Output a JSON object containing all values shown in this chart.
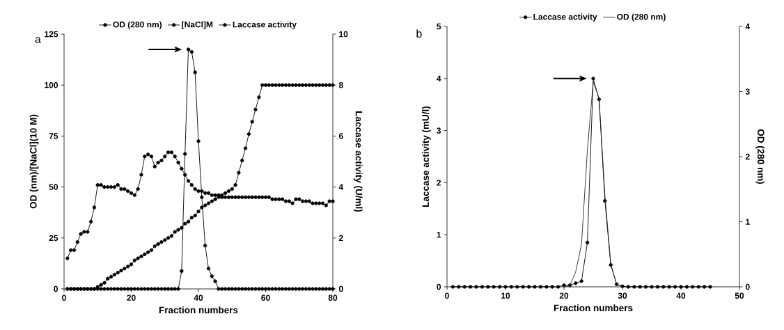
{
  "chart_data": [
    {
      "type": "line",
      "xlabel": "Fraction numbers",
      "ylabel": "OD (nm)/[NaCl](10 M)",
      "y2label": "Laccase activity (U/ml)",
      "annotations": [
        "a"
      ],
      "x": [
        1,
        2,
        3,
        4,
        5,
        6,
        7,
        8,
        9,
        10,
        11,
        12,
        13,
        14,
        15,
        16,
        17,
        18,
        19,
        20,
        21,
        22,
        23,
        24,
        25,
        26,
        27,
        28,
        29,
        30,
        31,
        32,
        33,
        34,
        35,
        36,
        37,
        38,
        39,
        40,
        41,
        42,
        43,
        44,
        45,
        46,
        47,
        48,
        49,
        50,
        51,
        52,
        53,
        54,
        55,
        56,
        57,
        58,
        59,
        60,
        61,
        62,
        63,
        64,
        65,
        66,
        67,
        68,
        69,
        70,
        71,
        72,
        73,
        74,
        75,
        76,
        77,
        78,
        79,
        80
      ],
      "xlim": [
        0,
        80
      ],
      "xticks": [
        0,
        20,
        40,
        60,
        80
      ],
      "ylim": [
        0,
        125
      ],
      "yticks": [
        0,
        25,
        50,
        75,
        100,
        125
      ],
      "y2lim": [
        0,
        10
      ],
      "y2ticks": [
        0,
        2,
        4,
        6,
        8,
        10
      ],
      "legend": "top",
      "line_style": "solid",
      "series": [
        {
          "name": "OD (280 nm)",
          "color": "#000000",
          "marker": "circle",
          "values": [
            15,
            19,
            19,
            23,
            27,
            28,
            28,
            33,
            40,
            51,
            51,
            50,
            50,
            50,
            50,
            51,
            49,
            49,
            48,
            47,
            46,
            49,
            56,
            65,
            66,
            65,
            60,
            62,
            63,
            65,
            67,
            67,
            65,
            62,
            59,
            56,
            53,
            51,
            49,
            48,
            48,
            47,
            47,
            46,
            46,
            46,
            45,
            45,
            45,
            45,
            45,
            45,
            45,
            45,
            45,
            45,
            45,
            45,
            45,
            45,
            45,
            44,
            44,
            44,
            44,
            43,
            43,
            42,
            44,
            44,
            43,
            43,
            43,
            42,
            42,
            42,
            42,
            41,
            43,
            43
          ]
        },
        {
          "name": "[NaCl]M",
          "color": "#000000",
          "marker": "circle",
          "values": [
            0,
            0,
            0,
            0,
            0,
            0,
            0,
            0,
            0,
            1,
            2,
            3,
            5,
            6,
            7,
            8,
            9,
            10,
            11,
            12,
            14,
            15,
            16,
            17,
            18,
            19,
            21,
            22,
            23,
            24,
            25,
            26,
            28,
            29,
            30,
            32,
            33,
            35,
            36,
            38,
            40,
            41,
            42,
            43,
            44,
            45,
            46,
            47,
            48,
            49,
            51,
            57,
            63,
            69,
            76,
            82,
            88,
            94,
            100,
            100,
            100,
            100,
            100,
            100,
            100,
            100,
            100,
            100,
            100,
            100,
            100,
            100,
            100,
            100,
            100,
            100,
            100,
            100,
            100,
            100
          ]
        },
        {
          "name": "Laccase activity",
          "color": "#000000",
          "marker": "circle",
          "axis": "y2",
          "values": [
            0,
            0,
            0,
            0,
            0,
            0,
            0,
            0,
            0,
            0,
            0,
            0,
            0,
            0,
            0,
            0,
            0,
            0,
            0,
            0,
            0,
            0,
            0,
            0,
            0,
            0,
            0,
            0,
            0,
            0,
            0,
            0,
            0,
            0,
            0.7,
            5.3,
            9.4,
            9.3,
            8.5,
            5.8,
            3.6,
            1.7,
            0.8,
            0.5,
            0.3,
            0,
            0,
            0,
            0,
            0,
            0,
            0,
            0,
            0,
            0,
            0,
            0,
            0,
            0,
            0,
            0,
            0,
            0,
            0,
            0,
            0,
            0,
            0,
            0,
            0,
            0,
            0,
            0,
            0,
            0,
            0,
            0,
            0,
            0,
            0
          ]
        }
      ]
    },
    {
      "type": "line",
      "xlabel": "Fraction numbers",
      "ylabel": "Laccase activity (mU/l)",
      "y2label": "OD (280 nm)",
      "annotations": [
        "b"
      ],
      "x": [
        1,
        2,
        3,
        4,
        5,
        6,
        7,
        8,
        9,
        10,
        11,
        12,
        13,
        14,
        15,
        16,
        17,
        18,
        19,
        20,
        21,
        22,
        23,
        24,
        25,
        26,
        27,
        28,
        29,
        30,
        31,
        32,
        33,
        34,
        35,
        36,
        37,
        38,
        39,
        40,
        41,
        42,
        43,
        44,
        45
      ],
      "xlim": [
        0,
        50
      ],
      "xticks": [
        0,
        10,
        20,
        30,
        40,
        50
      ],
      "ylim": [
        0,
        5
      ],
      "yticks": [
        0,
        1,
        2,
        3,
        4,
        5
      ],
      "y2lim": [
        0,
        4
      ],
      "y2ticks": [
        0,
        1,
        2,
        3,
        4
      ],
      "legend": "top",
      "line_style": "solid",
      "series": [
        {
          "name": "Laccase activity",
          "color": "#000000",
          "marker": "circle",
          "values": [
            0,
            0,
            0,
            0,
            0,
            0,
            0,
            0,
            0,
            0,
            0,
            0,
            0,
            0,
            0,
            0,
            0,
            0,
            0,
            0.03,
            0.03,
            0.07,
            0.11,
            0.85,
            4.0,
            3.6,
            1.65,
            0.42,
            0.05,
            0.01,
            0,
            0,
            0,
            0,
            0,
            0,
            0,
            0,
            0,
            0,
            0,
            0,
            0,
            0,
            0
          ]
        },
        {
          "name": "OD (280 nm)",
          "color": "#262626",
          "marker": "none",
          "axis": "y2",
          "x": [
            20,
            21,
            22,
            23,
            24,
            25,
            26,
            27,
            28,
            29,
            30
          ],
          "values": [
            0,
            0.02,
            0.23,
            0.66,
            2.1,
            3.15,
            2.9,
            1.4,
            0.35,
            0.04,
            0
          ]
        }
      ]
    }
  ]
}
